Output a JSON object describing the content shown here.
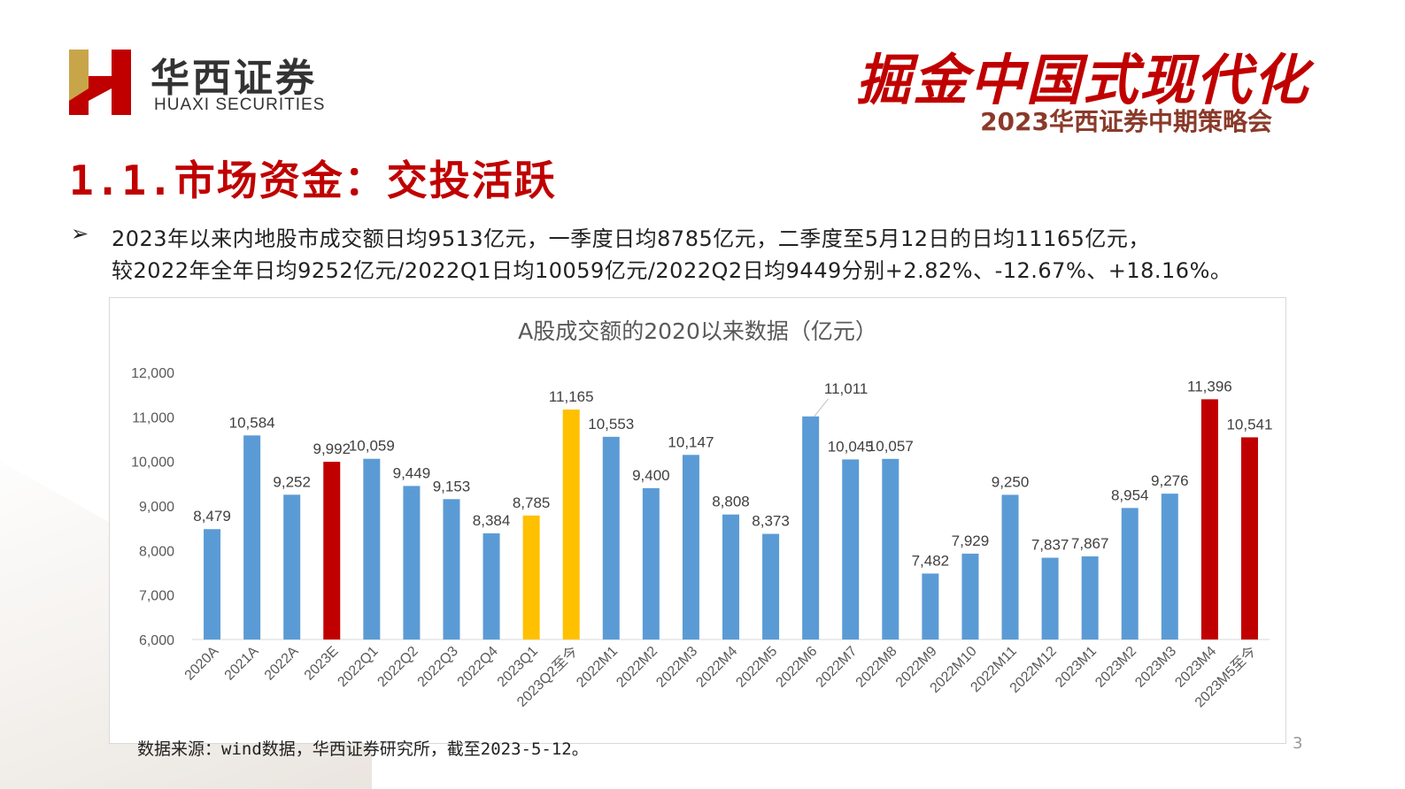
{
  "header": {
    "logo_cn": "华西证券",
    "logo_en": "HUAXI SECURITIES",
    "slogan": "掘金中国式现代化",
    "event": "2023华西证券中期策略会"
  },
  "section_title": "1.1.市场资金：交投活跃",
  "bullet": {
    "marker": "➢",
    "line1": "2023年以来内地股市成交额日均9513亿元，一季度日均8785亿元，二季度至5月12日的日均11165亿元，",
    "line2": "较2022年全年日均9252亿元/2022Q1日均10059亿元/2022Q2日均9449分别+2.82%、-12.67%、+18.16%。"
  },
  "source": "数据来源：wind数据，华西证券研究所，截至2023-5-12。",
  "page_number": "3",
  "colors": {
    "blue": "#5b9bd5",
    "red": "#c00000",
    "yellow": "#ffc000"
  },
  "chart_data": {
    "type": "bar",
    "title": "A股成交额的2020以来数据（亿元）",
    "ylim": [
      6000,
      12000
    ],
    "yticks": [
      "6,000",
      "7,000",
      "8,000",
      "9,000",
      "10,000",
      "11,000",
      "12,000"
    ],
    "ytick_values": [
      6000,
      7000,
      8000,
      9000,
      10000,
      11000,
      12000
    ],
    "grid": false,
    "legend": "none",
    "categories": [
      "2020A",
      "2021A",
      "2022A",
      "2023E",
      "2022Q1",
      "2022Q2",
      "2022Q3",
      "2022Q4",
      "2023Q1",
      "2023Q2至今",
      "2022M1",
      "2022M2",
      "2022M3",
      "2022M4",
      "2022M5",
      "2022M6",
      "2022M7",
      "2022M8",
      "2022M9",
      "2022M10",
      "2022M11",
      "2022M12",
      "2023M1",
      "2023M2",
      "2023M3",
      "2023M4",
      "2023M5至今"
    ],
    "values": [
      8479,
      10584,
      9252,
      9992,
      10059,
      9449,
      9153,
      8384,
      8785,
      11165,
      10553,
      9400,
      10147,
      8808,
      8373,
      11011,
      10045,
      10057,
      7482,
      7929,
      9250,
      7837,
      7867,
      8954,
      9276,
      11396,
      10541
    ],
    "labels": [
      "8,479",
      "10,584",
      "9,252",
      "9,992",
      "10,059",
      "9,449",
      "9,153",
      "8,384",
      "8,785",
      "11,165",
      "10,553",
      "9,400",
      "10,147",
      "8,808",
      "8,373",
      "11,011",
      "10,045",
      "10,057",
      "7,482",
      "7,929",
      "9,250",
      "7,837",
      "7,867",
      "8,954",
      "9,276",
      "11,396",
      "10,541"
    ],
    "bar_colors": [
      "blue",
      "blue",
      "blue",
      "red",
      "blue",
      "blue",
      "blue",
      "blue",
      "yellow",
      "yellow",
      "blue",
      "blue",
      "blue",
      "blue",
      "blue",
      "blue",
      "blue",
      "blue",
      "blue",
      "blue",
      "blue",
      "blue",
      "blue",
      "blue",
      "blue",
      "red",
      "red"
    ]
  }
}
